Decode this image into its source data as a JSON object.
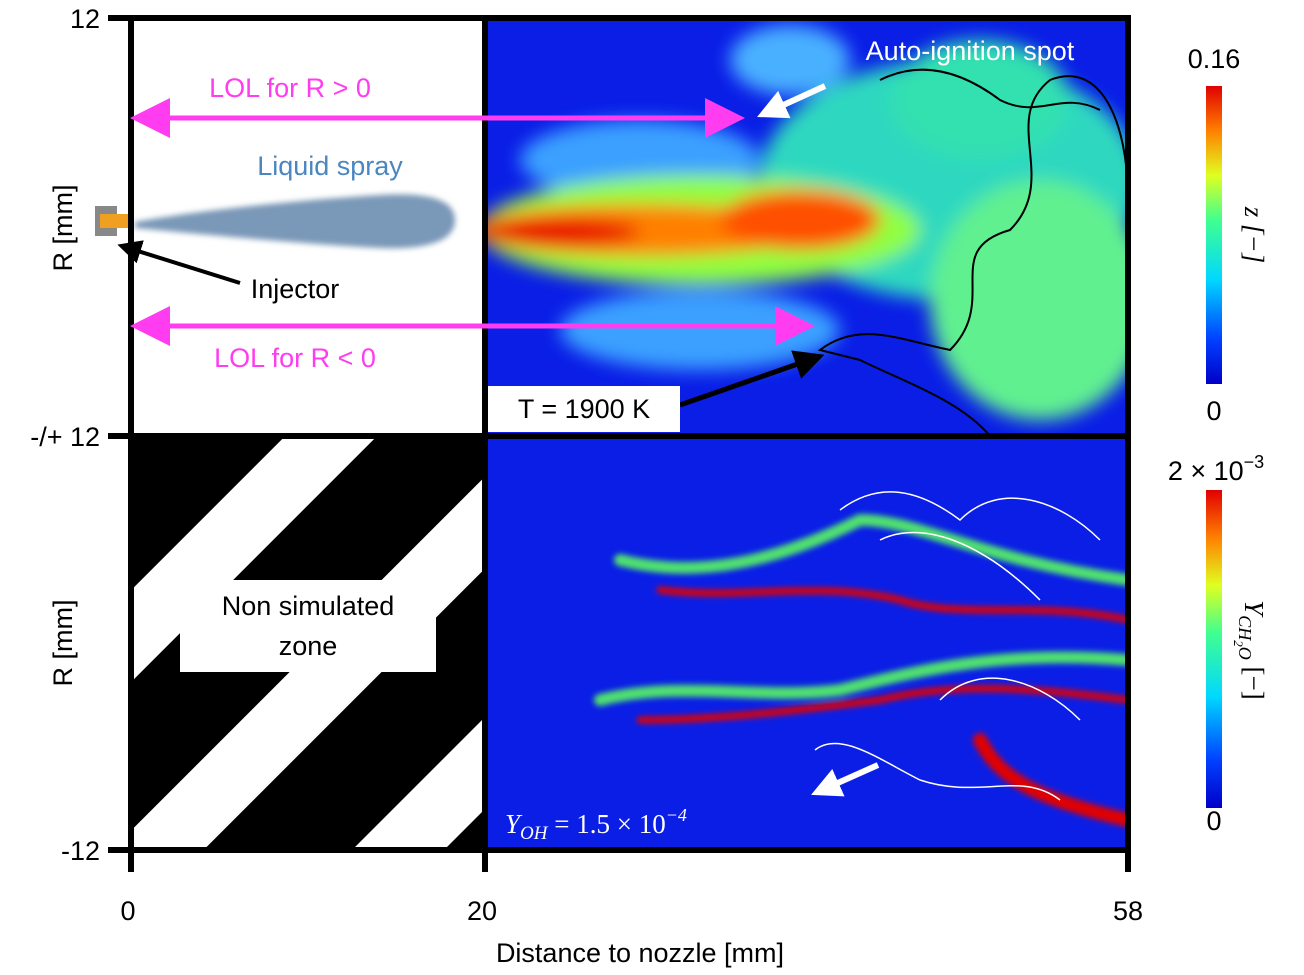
{
  "figure": {
    "x_axis": {
      "label": "Distance to nozzle [mm]",
      "ticks": [
        "0",
        "20",
        "58"
      ]
    },
    "top_panel": {
      "y_label": "R [mm]",
      "y_ticks": [
        "12",
        "-/+ 12"
      ],
      "annotations": {
        "auto_ignition": "Auto-ignition spot",
        "lol_pos": "LOL for R > 0",
        "spray": "Liquid spray",
        "injector": "Injector",
        "lol_neg": "LOL for R < 0",
        "temperature": "T = 1900 K"
      },
      "colorbar": {
        "max": "0.16",
        "min": "0",
        "label": "z [−]"
      }
    },
    "bottom_panel": {
      "y_label": "R [mm]",
      "y_ticks": [
        "-12"
      ],
      "zone_label": [
        "Non simulated",
        "zone"
      ],
      "oh_label": {
        "symbol": "Y",
        "subscript": "OH",
        "text": " = 1.5 × 10",
        "exponent": "−4"
      },
      "colorbar": {
        "max_base": "2 × 10",
        "max_exponent": "−3",
        "min": "0",
        "label_symbol": "Y",
        "label_subscript": "CH",
        "label_sub2": "2",
        "label_sub3": "O",
        "label_unit": " [−]"
      }
    }
  }
}
